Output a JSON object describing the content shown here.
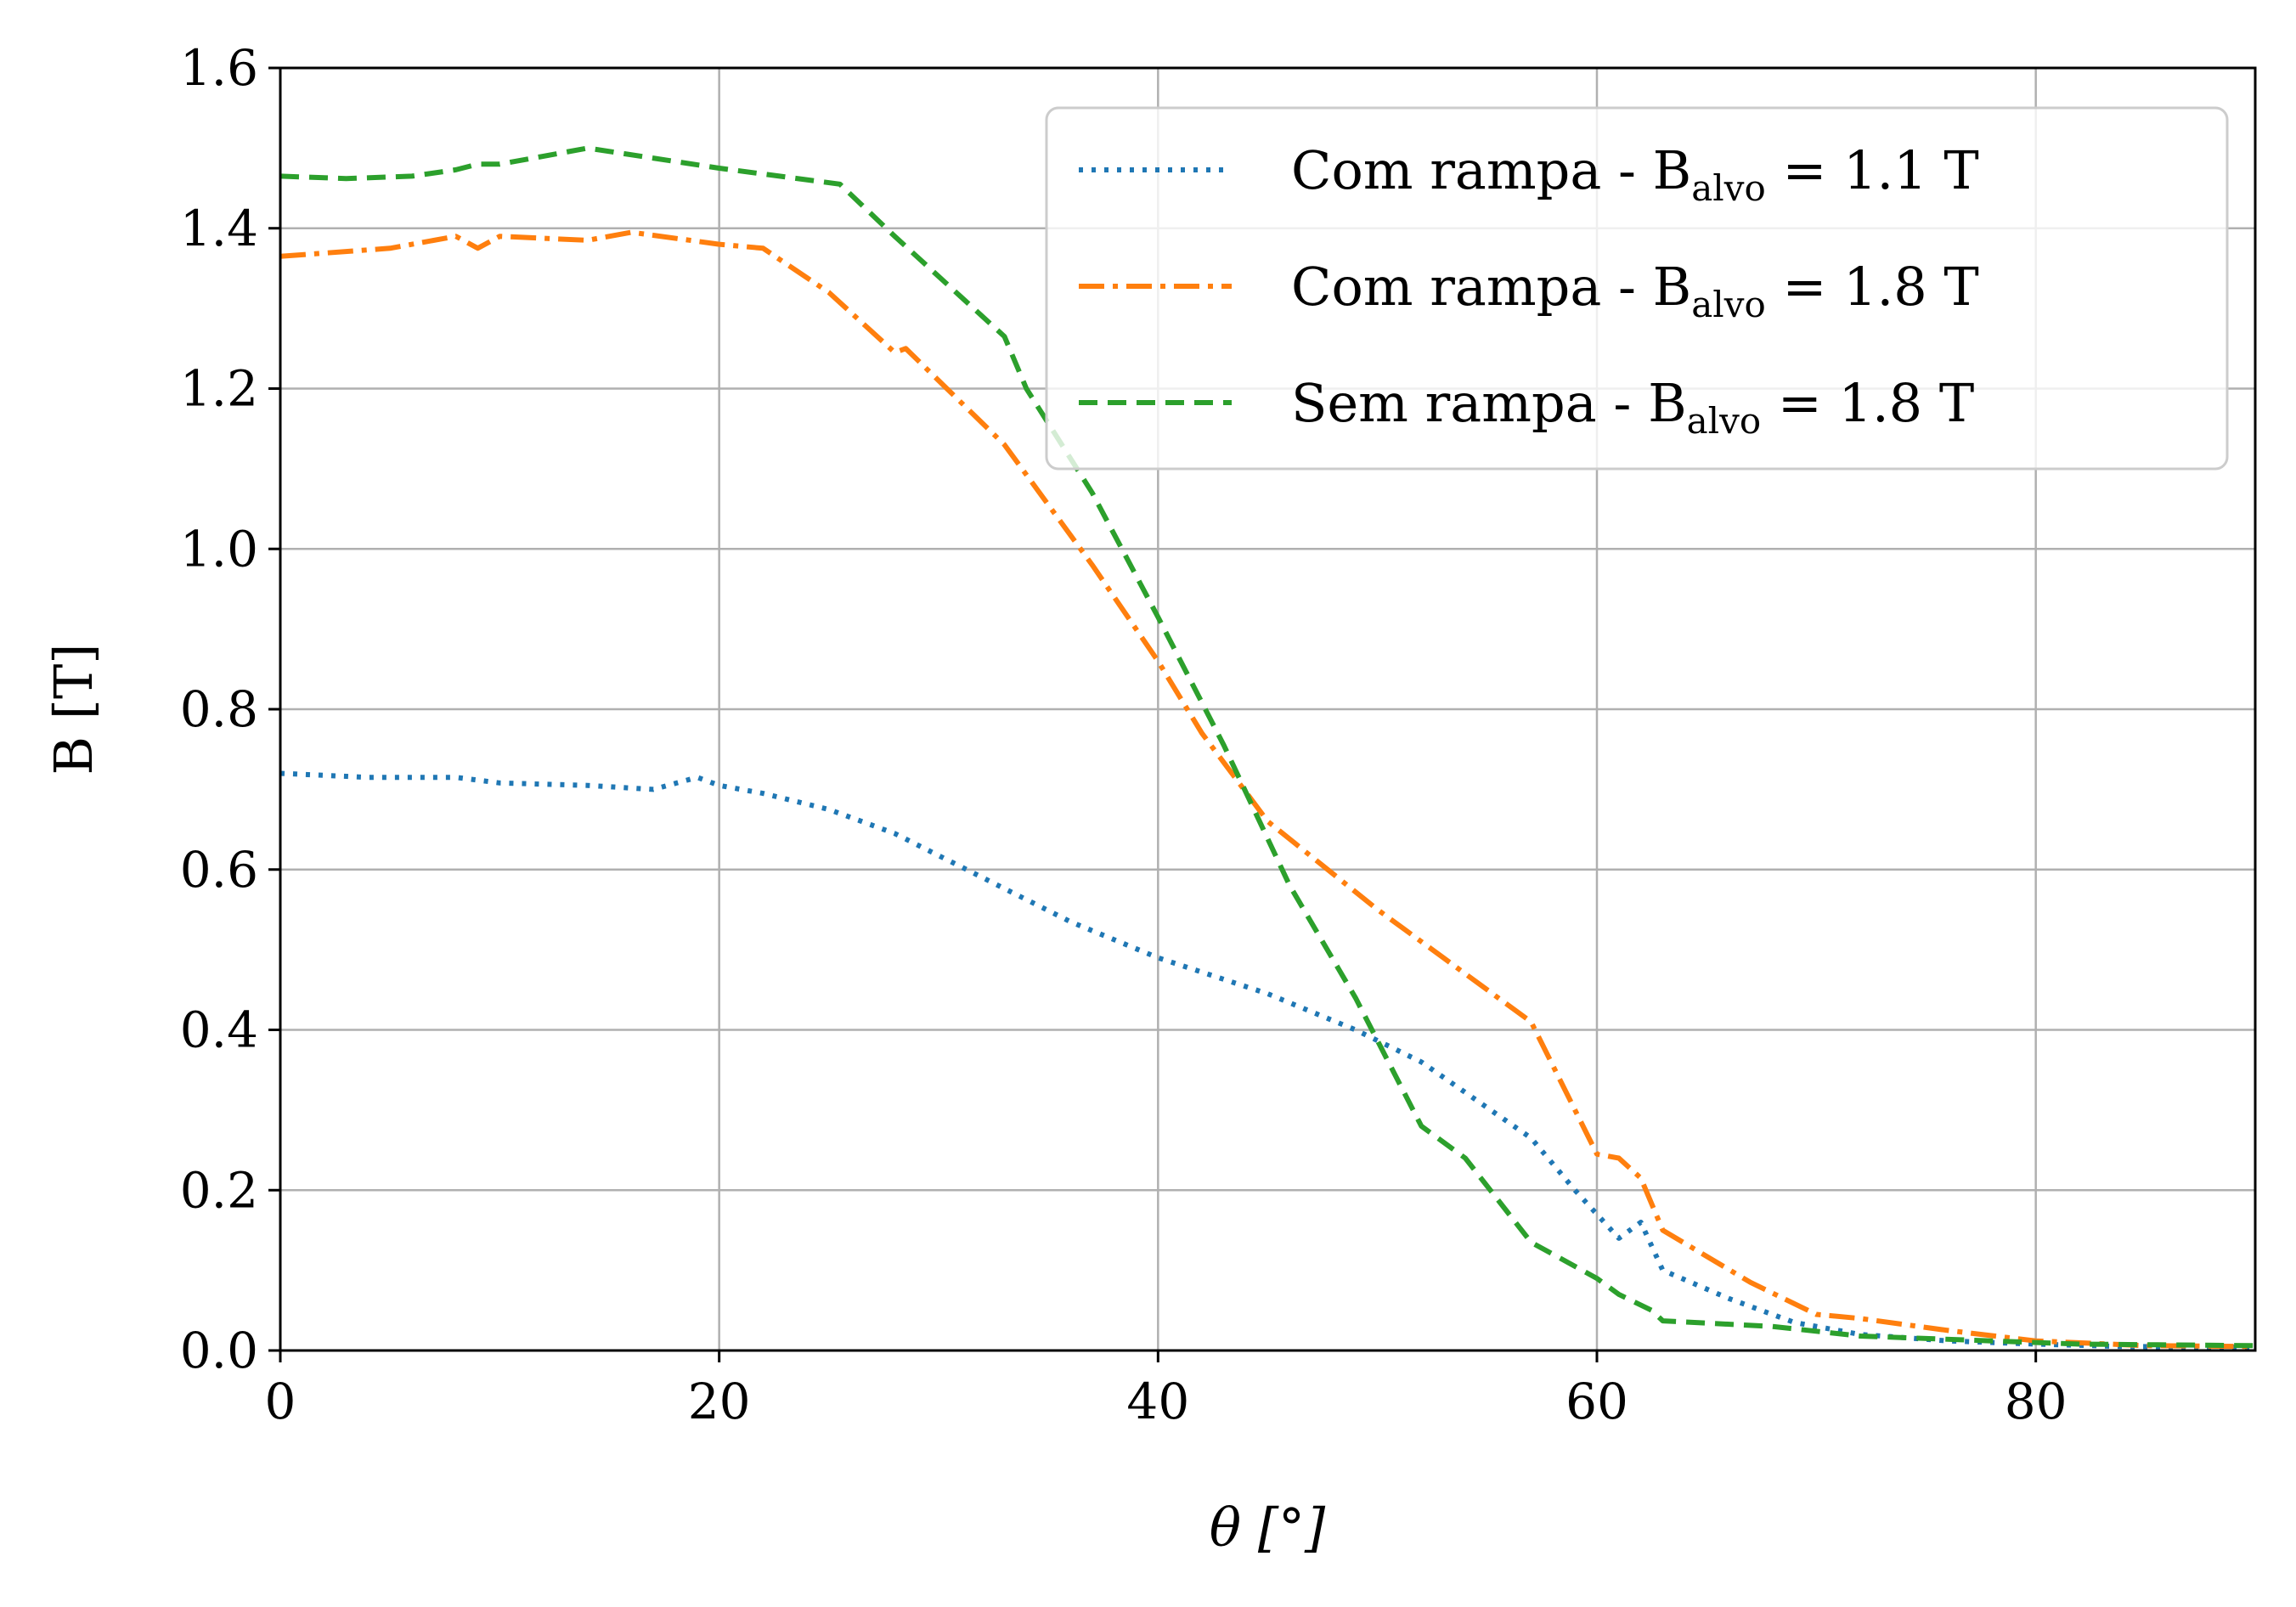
{
  "chart_data": {
    "type": "line",
    "xlabel": "θ [°]",
    "ylabel": "B [T]",
    "xlim": [
      0,
      90
    ],
    "ylim": [
      0.0,
      1.6
    ],
    "grid": true,
    "legend_placement": "top-right",
    "x_ticks": [
      "0",
      "20",
      "40",
      "60",
      "80"
    ],
    "y_ticks": [
      "0.0",
      "0.2",
      "0.4",
      "0.6",
      "0.8",
      "1.0",
      "1.2",
      "1.4",
      "1.6"
    ],
    "series": [
      {
        "name": "Com rampa - B",
        "name_subscript": "alvo",
        "name_suffix": " = 1.1 T",
        "color": "#1f77b4",
        "style": "dotted",
        "x": [
          0,
          4,
          8,
          10,
          14,
          17,
          19,
          20,
          22,
          25,
          28,
          32,
          36,
          40,
          45,
          49,
          52,
          57,
          59,
          61,
          62,
          63,
          66,
          69,
          72,
          76,
          80,
          84,
          90
        ],
        "y": [
          0.72,
          0.715,
          0.715,
          0.708,
          0.705,
          0.7,
          0.715,
          0.705,
          0.695,
          0.675,
          0.645,
          0.59,
          0.535,
          0.49,
          0.445,
          0.4,
          0.36,
          0.265,
          0.2,
          0.14,
          0.16,
          0.1,
          0.065,
          0.035,
          0.02,
          0.012,
          0.008,
          0.005,
          0.004
        ]
      },
      {
        "name": "Com rampa - B",
        "name_subscript": "alvo",
        "name_suffix": " = 1.8 T",
        "color": "#ff7f0e",
        "style": "dashdot",
        "x": [
          0,
          5,
          8,
          9,
          10,
          14,
          16,
          20,
          22,
          25,
          28,
          28.5,
          33,
          37,
          40,
          42,
          45,
          50,
          53,
          57,
          59,
          60,
          61,
          62,
          63,
          67,
          70,
          72,
          76,
          80,
          85,
          90
        ],
        "y": [
          1.365,
          1.375,
          1.39,
          1.375,
          1.39,
          1.385,
          1.395,
          1.38,
          1.375,
          1.32,
          1.245,
          1.25,
          1.13,
          0.98,
          0.86,
          0.77,
          0.66,
          0.55,
          0.49,
          0.41,
          0.3,
          0.245,
          0.24,
          0.215,
          0.15,
          0.085,
          0.045,
          0.04,
          0.025,
          0.012,
          0.006,
          0.005
        ]
      },
      {
        "name": "Sem rampa - B",
        "name_subscript": "alvo",
        "name_suffix": " = 1.8 T",
        "color": "#2ca02c",
        "style": "dashed",
        "x": [
          0,
          3,
          6,
          8,
          9,
          10,
          14,
          20,
          25.5,
          28,
          31,
          33,
          34,
          37,
          40,
          43,
          46,
          49,
          52,
          54,
          57,
          60,
          61,
          62.5,
          63,
          68,
          72,
          78,
          82,
          90
        ],
        "y": [
          1.465,
          1.462,
          1.465,
          1.473,
          1.48,
          1.48,
          1.5,
          1.475,
          1.455,
          1.39,
          1.315,
          1.265,
          1.2,
          1.07,
          0.915,
          0.755,
          0.58,
          0.44,
          0.28,
          0.24,
          0.135,
          0.09,
          0.07,
          0.05,
          0.037,
          0.03,
          0.018,
          0.012,
          0.008,
          0.006
        ]
      }
    ]
  }
}
